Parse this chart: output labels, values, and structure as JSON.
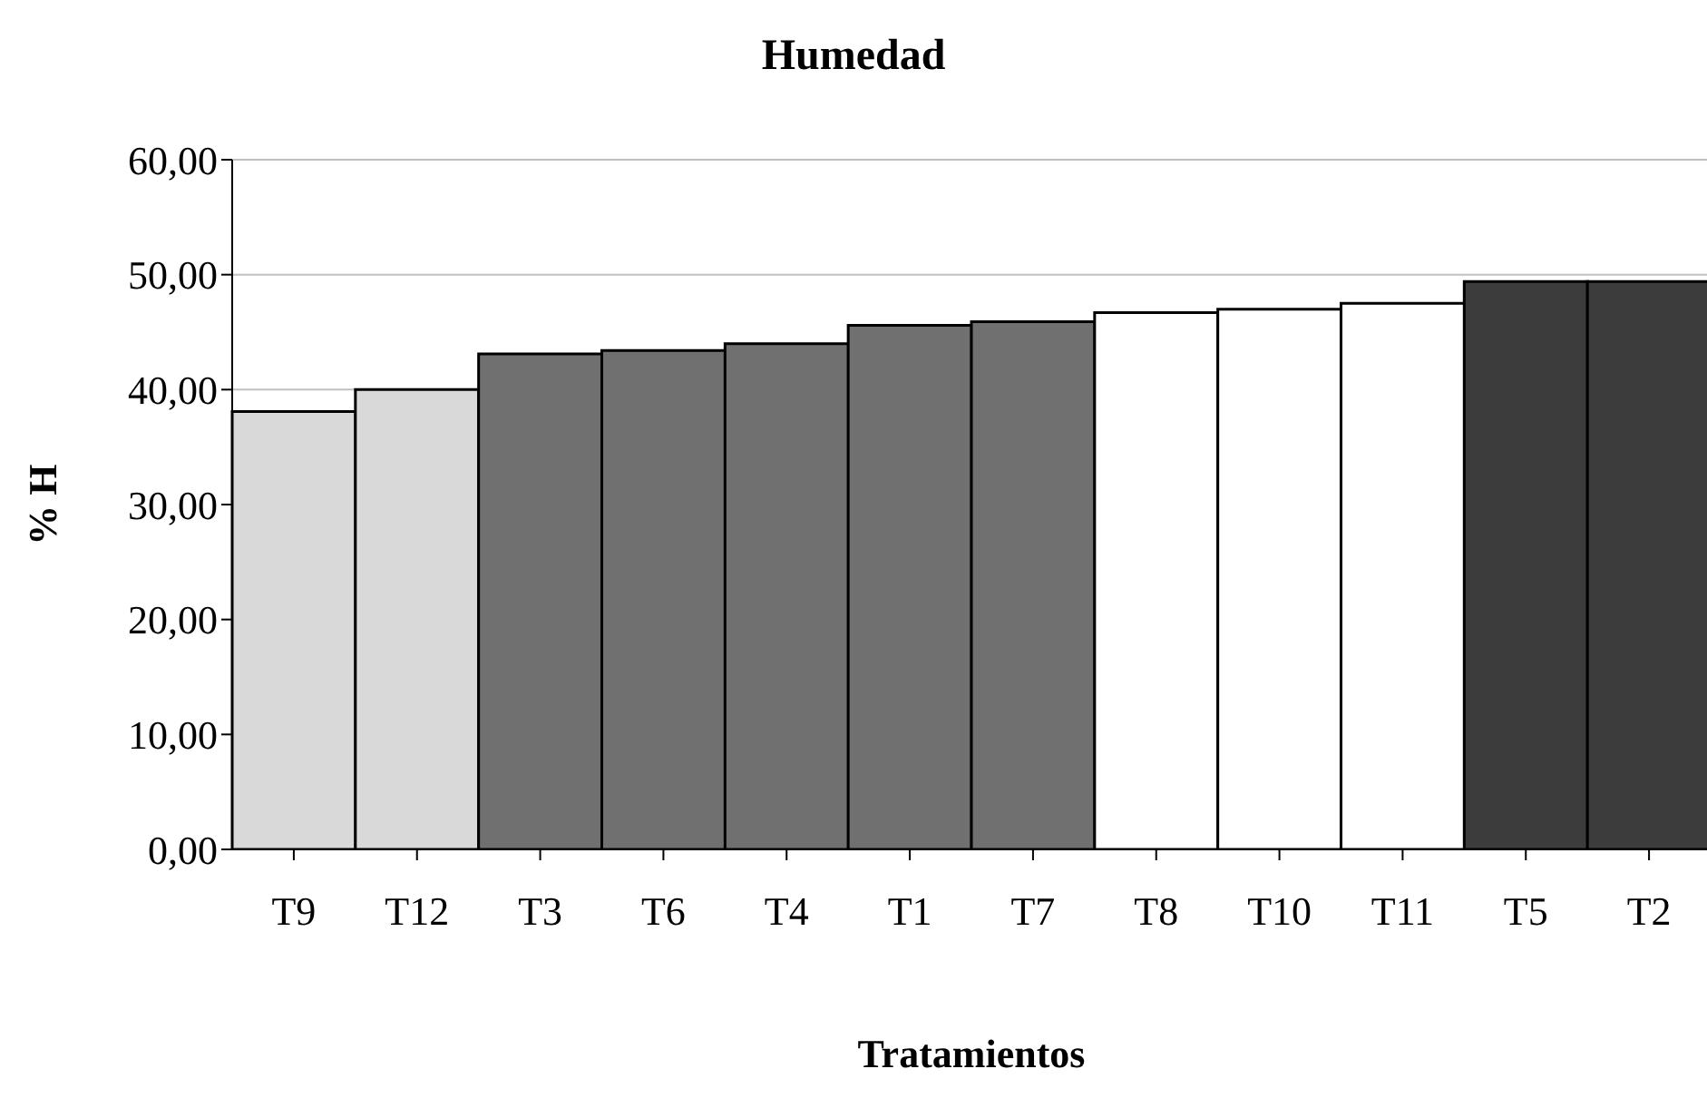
{
  "chart_data": {
    "type": "bar",
    "title": "Humedad",
    "xlabel": "Tratamientos",
    "ylabel": "% H",
    "categories": [
      "T9",
      "T12",
      "T3",
      "T6",
      "T4",
      "T1",
      "T7",
      "T8",
      "T10",
      "T11",
      "T5",
      "T2"
    ],
    "values": [
      38.1,
      40.0,
      43.1,
      43.4,
      44.0,
      45.6,
      45.9,
      46.7,
      47.0,
      47.5,
      49.4,
      49.4
    ],
    "colors": [
      "#d9d9d9",
      "#d9d9d9",
      "#707070",
      "#707070",
      "#707070",
      "#707070",
      "#707070",
      "#ffffff",
      "#ffffff",
      "#ffffff",
      "#3c3c3c",
      "#3c3c3c"
    ],
    "ylim": [
      0,
      60
    ],
    "yticks": [
      {
        "value": 0,
        "label": "0,00"
      },
      {
        "value": 10,
        "label": "10,00"
      },
      {
        "value": 20,
        "label": "20,00"
      },
      {
        "value": 30,
        "label": "30,00"
      },
      {
        "value": 40,
        "label": "40,00"
      },
      {
        "value": 50,
        "label": "50,00"
      },
      {
        "value": 60,
        "label": "60,00"
      }
    ],
    "grid": "y"
  }
}
